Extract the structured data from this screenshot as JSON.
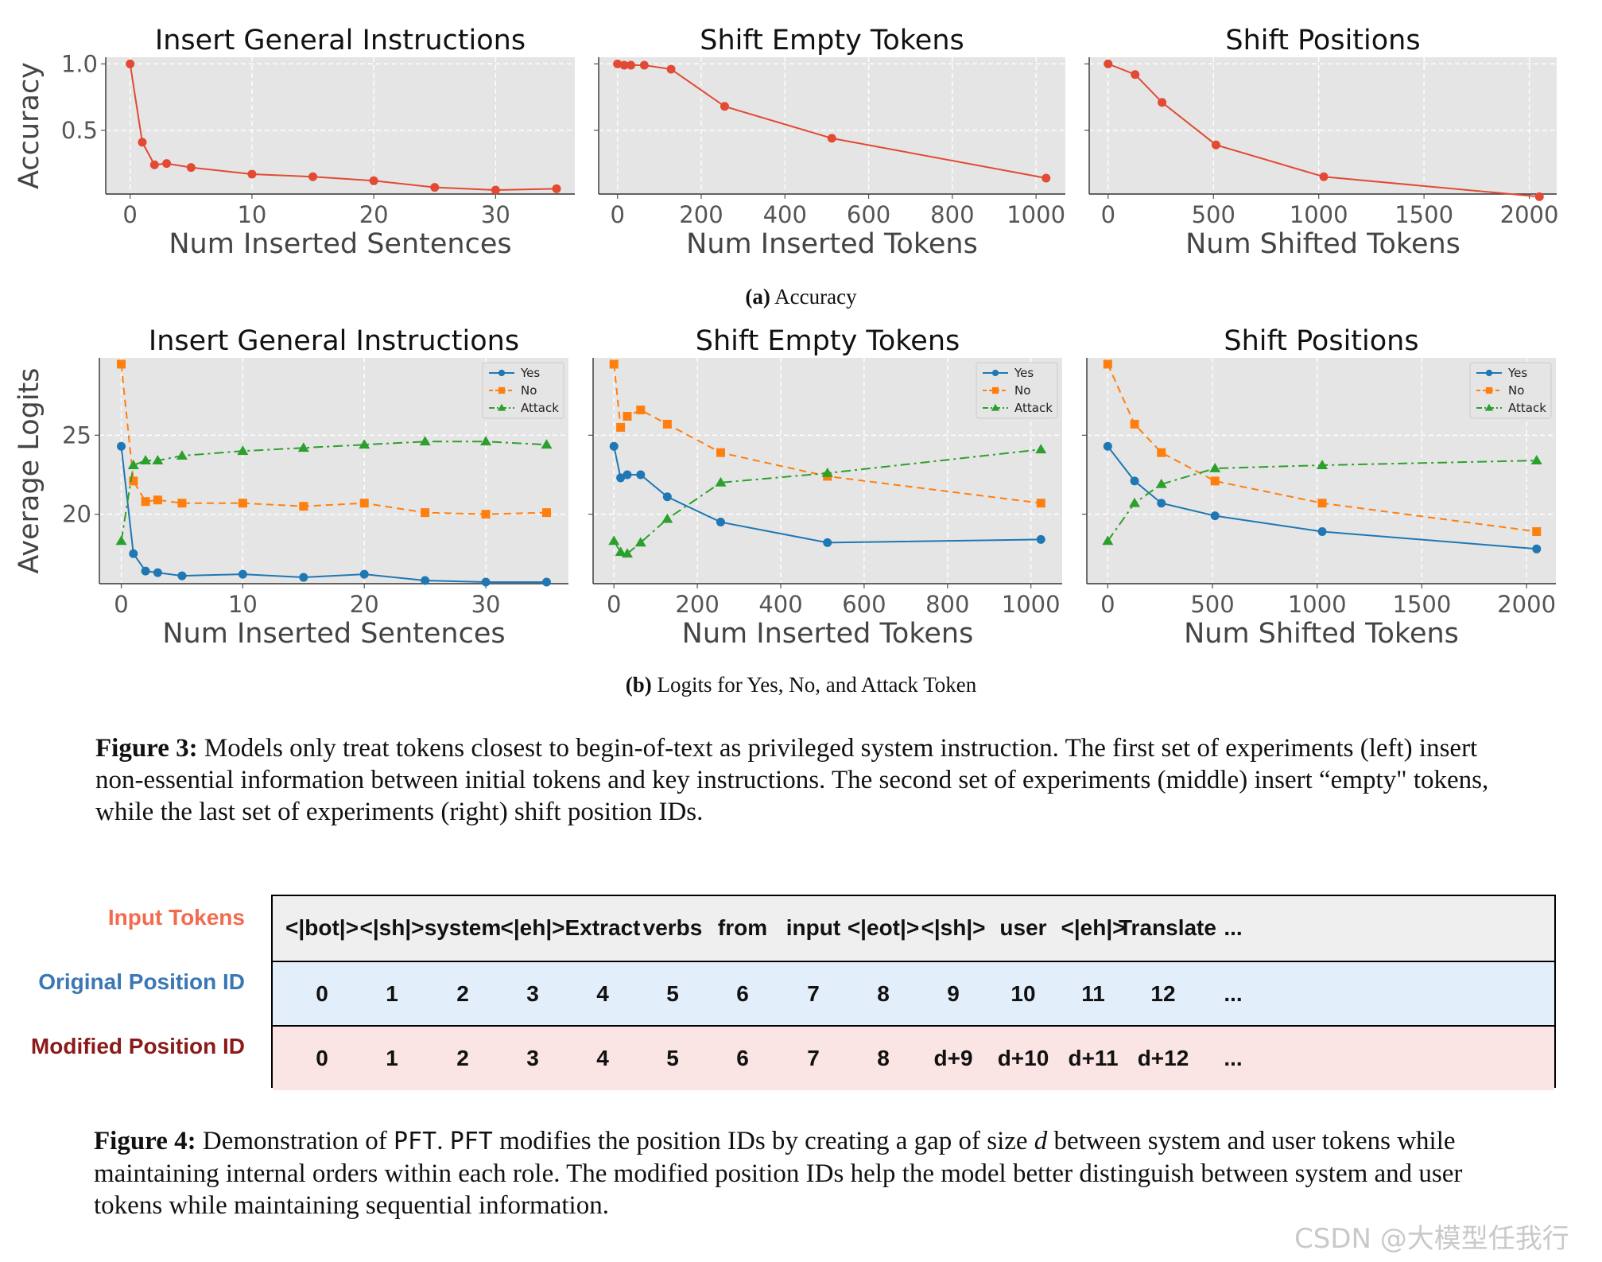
{
  "chart_data": [
    {
      "id": "a1",
      "type": "line",
      "title": "Insert General Instructions",
      "xlabel": "Num Inserted Sentences",
      "ylabel": "Accuracy",
      "xlim": [
        -2,
        36.5
      ],
      "ylim": [
        0.02,
        1.05
      ],
      "xticks": [
        0,
        10,
        20,
        30
      ],
      "yticks": [
        0.5,
        1.0
      ],
      "ytick_labels": [
        "0.5",
        "1.0"
      ],
      "series": [
        {
          "name": "Accuracy",
          "color": "#e24a33",
          "marker": "circle",
          "dash": "solid",
          "x": [
            0,
            1,
            2,
            3,
            5,
            10,
            15,
            20,
            25,
            30,
            35
          ],
          "y": [
            1.0,
            0.41,
            0.24,
            0.25,
            0.22,
            0.17,
            0.15,
            0.12,
            0.07,
            0.05,
            0.06
          ]
        }
      ]
    },
    {
      "id": "a2",
      "type": "line",
      "title": "Shift Empty Tokens",
      "xlabel": "Num Inserted Tokens",
      "ylabel": "",
      "xlim": [
        -45,
        1070
      ],
      "ylim": [
        0.02,
        1.05
      ],
      "xticks": [
        0,
        200,
        400,
        600,
        800,
        1000
      ],
      "yticks": [
        0.5,
        1.0
      ],
      "ytick_labels": [
        "",
        ""
      ],
      "series": [
        {
          "name": "Accuracy",
          "color": "#e24a33",
          "marker": "circle",
          "dash": "solid",
          "x": [
            0,
            16,
            32,
            64,
            128,
            256,
            512,
            1024
          ],
          "y": [
            1.0,
            0.99,
            0.99,
            0.99,
            0.96,
            0.68,
            0.44,
            0.14
          ]
        }
      ]
    },
    {
      "id": "a3",
      "type": "line",
      "title": "Shift Positions",
      "xlabel": "Num Shifted Tokens",
      "ylabel": "",
      "xlim": [
        -90,
        2130
      ],
      "ylim": [
        0.02,
        1.05
      ],
      "xticks": [
        0,
        500,
        1000,
        1500,
        2000
      ],
      "yticks": [
        0.5,
        1.0
      ],
      "ytick_labels": [
        "",
        ""
      ],
      "series": [
        {
          "name": "Accuracy",
          "color": "#e24a33",
          "marker": "circle",
          "dash": "solid",
          "x": [
            0,
            128,
            256,
            512,
            1024,
            2048
          ],
          "y": [
            1.0,
            0.92,
            0.71,
            0.39,
            0.15,
            0.0
          ]
        }
      ]
    },
    {
      "id": "b1",
      "type": "line",
      "title": "Insert General Instructions",
      "xlabel": "Num Inserted Sentences",
      "ylabel": "Average Logits",
      "xlim": [
        -1.8,
        36.8
      ],
      "ylim": [
        15.6,
        29.9
      ],
      "xticks": [
        0,
        10,
        20,
        30
      ],
      "yticks": [
        20,
        25
      ],
      "ytick_labels": [
        "20",
        "25"
      ],
      "legend": "top-right",
      "series": [
        {
          "name": "Yes",
          "color": "#1f77b4",
          "marker": "circle",
          "dash": "solid",
          "x": [
            0,
            1,
            2,
            3,
            5,
            10,
            15,
            20,
            25,
            30,
            35
          ],
          "y": [
            24.3,
            17.5,
            16.4,
            16.3,
            16.1,
            16.2,
            16.0,
            16.2,
            15.8,
            15.7,
            15.7
          ]
        },
        {
          "name": "No",
          "color": "#ff7f0e",
          "marker": "square",
          "dash": "dashed",
          "x": [
            0,
            1,
            2,
            3,
            5,
            10,
            15,
            20,
            25,
            30,
            35
          ],
          "y": [
            29.5,
            22.1,
            20.8,
            20.9,
            20.7,
            20.7,
            20.5,
            20.7,
            20.1,
            20.0,
            20.1
          ]
        },
        {
          "name": "Attack",
          "color": "#2ca02c",
          "marker": "triangle",
          "dash": "dashdot",
          "x": [
            0,
            1,
            2,
            3,
            5,
            10,
            15,
            20,
            25,
            30,
            35
          ],
          "y": [
            18.3,
            23.1,
            23.4,
            23.4,
            23.7,
            24.0,
            24.2,
            24.4,
            24.6,
            24.6,
            24.4
          ]
        }
      ]
    },
    {
      "id": "b2",
      "type": "line",
      "title": "Shift Empty Tokens",
      "xlabel": "Num Inserted Tokens",
      "ylabel": "",
      "xlim": [
        -50,
        1075
      ],
      "ylim": [
        15.6,
        29.9
      ],
      "xticks": [
        0,
        200,
        400,
        600,
        800,
        1000
      ],
      "yticks": [
        20,
        25
      ],
      "ytick_labels": [
        "",
        ""
      ],
      "legend": "top-right",
      "series": [
        {
          "name": "Yes",
          "color": "#1f77b4",
          "marker": "circle",
          "dash": "solid",
          "x": [
            0,
            16,
            32,
            64,
            128,
            256,
            512,
            1024
          ],
          "y": [
            24.3,
            22.3,
            22.5,
            22.5,
            21.1,
            19.5,
            18.2,
            18.4
          ]
        },
        {
          "name": "No",
          "color": "#ff7f0e",
          "marker": "square",
          "dash": "dashed",
          "x": [
            0,
            16,
            32,
            64,
            128,
            256,
            512,
            1024
          ],
          "y": [
            29.5,
            25.5,
            26.2,
            26.6,
            25.7,
            23.9,
            22.4,
            20.7
          ]
        },
        {
          "name": "Attack",
          "color": "#2ca02c",
          "marker": "triangle",
          "dash": "dashdot",
          "x": [
            0,
            16,
            32,
            64,
            128,
            256,
            512,
            1024
          ],
          "y": [
            18.3,
            17.6,
            17.5,
            18.2,
            19.7,
            22.0,
            22.6,
            24.1
          ]
        }
      ]
    },
    {
      "id": "b3",
      "type": "line",
      "title": "Shift Positions",
      "xlabel": "Num Shifted Tokens",
      "ylabel": "",
      "xlim": [
        -100,
        2140
      ],
      "ylim": [
        15.6,
        29.9
      ],
      "xticks": [
        0,
        500,
        1000,
        1500,
        2000
      ],
      "yticks": [
        20,
        25
      ],
      "ytick_labels": [
        "",
        ""
      ],
      "legend": "top-right",
      "series": [
        {
          "name": "Yes",
          "color": "#1f77b4",
          "marker": "circle",
          "dash": "solid",
          "x": [
            0,
            128,
            256,
            512,
            1024,
            2048
          ],
          "y": [
            24.3,
            22.1,
            20.7,
            19.9,
            18.9,
            17.8
          ]
        },
        {
          "name": "No",
          "color": "#ff7f0e",
          "marker": "square",
          "dash": "dashed",
          "x": [
            0,
            128,
            256,
            512,
            1024,
            2048
          ],
          "y": [
            29.5,
            25.7,
            23.9,
            22.1,
            20.7,
            18.9
          ]
        },
        {
          "name": "Attack",
          "color": "#2ca02c",
          "marker": "triangle",
          "dash": "dashdot",
          "x": [
            0,
            128,
            256,
            512,
            1024,
            2048
          ],
          "y": [
            18.3,
            20.7,
            21.9,
            22.9,
            23.1,
            23.4
          ]
        }
      ]
    }
  ],
  "subcaption_a": {
    "label": "(a)",
    "text": "Accuracy"
  },
  "subcaption_b": {
    "label": "(b)",
    "text": "Logits for Yes, No, and Attack Token"
  },
  "figure3": {
    "label": "Figure 3:",
    "text": "Models only treat tokens closest to begin-of-text as privileged system instruction. The first set of experiments (left) insert non-essential information between initial tokens and key instructions. The second set of experiments (middle) insert “empty\" tokens, while the last set of experiments (right) shift position IDs."
  },
  "table": {
    "row_labels": [
      {
        "text": "Input Tokens",
        "color": "#f26b4f"
      },
      {
        "text": "Original Position ID",
        "color": "#3a78b4"
      },
      {
        "text": "Modified Position ID",
        "color": "#8b1a1a"
      }
    ],
    "rows": [
      [
        "<|bot|>",
        "<|sh|>",
        "system",
        "<|eh|>",
        "Extract",
        "verbs",
        "from",
        "input",
        "<|eot|>",
        "<|sh|>",
        "user",
        "<|eh|>",
        "Translate",
        "..."
      ],
      [
        "0",
        "1",
        "2",
        "3",
        "4",
        "5",
        "6",
        "7",
        "8",
        "9",
        "10",
        "11",
        "12",
        "..."
      ],
      [
        "0",
        "1",
        "2",
        "3",
        "4",
        "5",
        "6",
        "7",
        "8",
        "d+9",
        "d+10",
        "d+11",
        "d+12",
        "..."
      ]
    ]
  },
  "figure4": {
    "label": "Figure 4:",
    "pre": "Demonstration of",
    "pft": "PFT",
    "mid": ". ",
    "pft2": "PFT",
    "post1": "modifies the position IDs by creating a gap of size",
    "var": "d",
    "post2": "between system and user tokens while maintaining internal orders within each role. The modified position IDs help the model better distinguish between system and user tokens while maintaining sequential information."
  },
  "watermark": "CSDN @大模型任我行"
}
